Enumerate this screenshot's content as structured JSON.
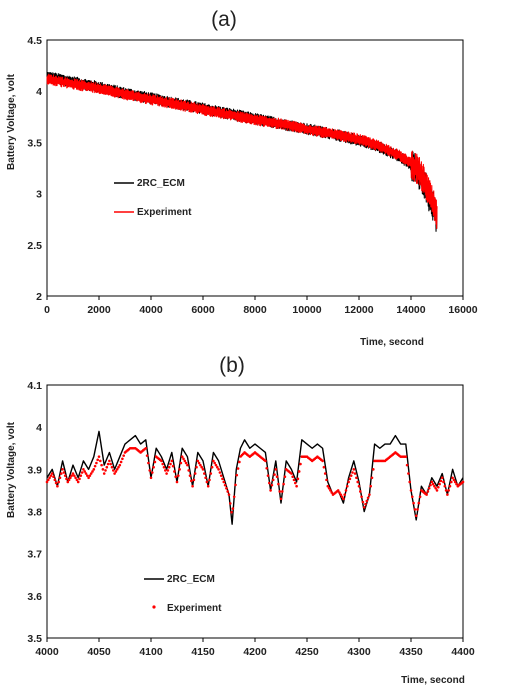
{
  "chart_data": [
    {
      "type": "line",
      "panel_label": "(a)",
      "xlabel": "Time, second",
      "ylabel": "Battery Voltage, volt",
      "xlim": [
        0,
        16000
      ],
      "ylim": [
        2,
        4.5
      ],
      "x_ticks": [
        0,
        2000,
        4000,
        6000,
        8000,
        10000,
        12000,
        14000,
        16000
      ],
      "y_ticks": [
        2,
        2.5,
        3,
        3.5,
        4,
        4.5
      ],
      "grid": false,
      "legend_position": "center-left",
      "series": [
        {
          "name": "2RC_ECM",
          "color": "#000000",
          "style": "line",
          "x": [
            0,
            1000,
            2000,
            3000,
            4000,
            5000,
            6000,
            7000,
            8000,
            9000,
            10000,
            11000,
            12000,
            12500,
            13000,
            13500,
            14000,
            14300,
            14500,
            14700,
            14850,
            15000
          ],
          "y": [
            4.14,
            4.09,
            4.04,
            3.98,
            3.93,
            3.88,
            3.83,
            3.78,
            3.73,
            3.68,
            3.63,
            3.58,
            3.52,
            3.48,
            3.43,
            3.37,
            3.28,
            3.2,
            3.1,
            2.97,
            2.88,
            2.75
          ]
        },
        {
          "name": "Experiment",
          "color": "#ff0000",
          "style": "line",
          "x": [
            0,
            1000,
            2000,
            3000,
            4000,
            5000,
            6000,
            7000,
            8000,
            9000,
            10000,
            11000,
            12000,
            12500,
            13000,
            13500,
            14000,
            14300,
            14500,
            14700,
            14850,
            15000
          ],
          "y": [
            4.12,
            4.07,
            4.03,
            3.97,
            3.92,
            3.87,
            3.82,
            3.77,
            3.72,
            3.68,
            3.63,
            3.58,
            3.53,
            3.49,
            3.44,
            3.38,
            3.3,
            3.22,
            3.13,
            3.0,
            2.9,
            2.78
          ]
        }
      ]
    },
    {
      "type": "line",
      "panel_label": "(b)",
      "xlabel": "Time, second",
      "ylabel": "Battery Voltage, volt",
      "xlim": [
        4000,
        4400
      ],
      "ylim": [
        3.5,
        4.1
      ],
      "x_ticks": [
        4000,
        4050,
        4100,
        4150,
        4200,
        4250,
        4300,
        4350,
        4400
      ],
      "y_ticks": [
        3.5,
        3.6,
        3.7,
        3.8,
        3.9,
        4,
        4.1
      ],
      "grid": false,
      "legend_position": "bottom-left",
      "series": [
        {
          "name": "2RC_ECM",
          "color": "#000000",
          "style": "line",
          "x": [
            4000,
            4005,
            4010,
            4015,
            4020,
            4025,
            4030,
            4035,
            4040,
            4045,
            4050,
            4055,
            4060,
            4065,
            4070,
            4075,
            4080,
            4085,
            4090,
            4095,
            4100,
            4105,
            4110,
            4115,
            4120,
            4125,
            4130,
            4135,
            4140,
            4145,
            4150,
            4155,
            4160,
            4165,
            4170,
            4175,
            4178,
            4182,
            4186,
            4190,
            4195,
            4200,
            4205,
            4210,
            4215,
            4220,
            4225,
            4230,
            4235,
            4240,
            4245,
            4250,
            4255,
            4260,
            4265,
            4270,
            4275,
            4280,
            4285,
            4290,
            4295,
            4300,
            4305,
            4310,
            4315,
            4320,
            4325,
            4330,
            4335,
            4340,
            4345,
            4350,
            4355,
            4360,
            4365,
            4370,
            4375,
            4380,
            4385,
            4390,
            4395,
            4400
          ],
          "y": [
            3.88,
            3.9,
            3.86,
            3.92,
            3.87,
            3.91,
            3.88,
            3.92,
            3.9,
            3.93,
            3.99,
            3.91,
            3.94,
            3.9,
            3.93,
            3.96,
            3.97,
            3.98,
            3.96,
            3.97,
            3.88,
            3.95,
            3.93,
            3.9,
            3.94,
            3.87,
            3.95,
            3.93,
            3.86,
            3.94,
            3.92,
            3.86,
            3.94,
            3.92,
            3.88,
            3.84,
            3.77,
            3.9,
            3.95,
            3.97,
            3.95,
            3.96,
            3.95,
            3.94,
            3.85,
            3.92,
            3.82,
            3.92,
            3.9,
            3.87,
            3.97,
            3.96,
            3.95,
            3.96,
            3.95,
            3.87,
            3.84,
            3.85,
            3.82,
            3.88,
            3.92,
            3.87,
            3.8,
            3.84,
            3.96,
            3.95,
            3.96,
            3.96,
            3.98,
            3.96,
            3.96,
            3.85,
            3.78,
            3.86,
            3.84,
            3.88,
            3.86,
            3.89,
            3.84,
            3.9,
            3.86,
            3.88
          ]
        },
        {
          "name": "Experiment",
          "color": "#ff0000",
          "style": "dots",
          "x": [
            4000,
            4005,
            4010,
            4015,
            4020,
            4025,
            4030,
            4035,
            4040,
            4045,
            4050,
            4055,
            4060,
            4065,
            4070,
            4075,
            4080,
            4085,
            4090,
            4095,
            4100,
            4105,
            4110,
            4115,
            4120,
            4125,
            4130,
            4135,
            4140,
            4145,
            4150,
            4155,
            4160,
            4165,
            4170,
            4175,
            4178,
            4182,
            4186,
            4190,
            4195,
            4200,
            4205,
            4210,
            4215,
            4220,
            4225,
            4230,
            4235,
            4240,
            4245,
            4250,
            4255,
            4260,
            4265,
            4270,
            4275,
            4280,
            4285,
            4290,
            4295,
            4300,
            4305,
            4310,
            4315,
            4320,
            4325,
            4330,
            4335,
            4340,
            4345,
            4350,
            4355,
            4360,
            4365,
            4370,
            4375,
            4380,
            4385,
            4390,
            4395,
            4400
          ],
          "y": [
            3.87,
            3.89,
            3.86,
            3.9,
            3.87,
            3.89,
            3.87,
            3.9,
            3.88,
            3.9,
            3.93,
            3.89,
            3.92,
            3.89,
            3.91,
            3.94,
            3.95,
            3.95,
            3.94,
            3.95,
            3.88,
            3.93,
            3.92,
            3.89,
            3.92,
            3.87,
            3.93,
            3.91,
            3.86,
            3.92,
            3.9,
            3.86,
            3.92,
            3.9,
            3.87,
            3.84,
            3.79,
            3.88,
            3.93,
            3.94,
            3.93,
            3.94,
            3.93,
            3.92,
            3.85,
            3.9,
            3.83,
            3.9,
            3.89,
            3.86,
            3.93,
            3.93,
            3.92,
            3.93,
            3.92,
            3.86,
            3.84,
            3.85,
            3.83,
            3.87,
            3.9,
            3.86,
            3.81,
            3.84,
            3.92,
            3.92,
            3.92,
            3.93,
            3.94,
            3.93,
            3.93,
            3.85,
            3.79,
            3.85,
            3.84,
            3.87,
            3.85,
            3.88,
            3.84,
            3.88,
            3.86,
            3.87
          ]
        }
      ]
    }
  ]
}
